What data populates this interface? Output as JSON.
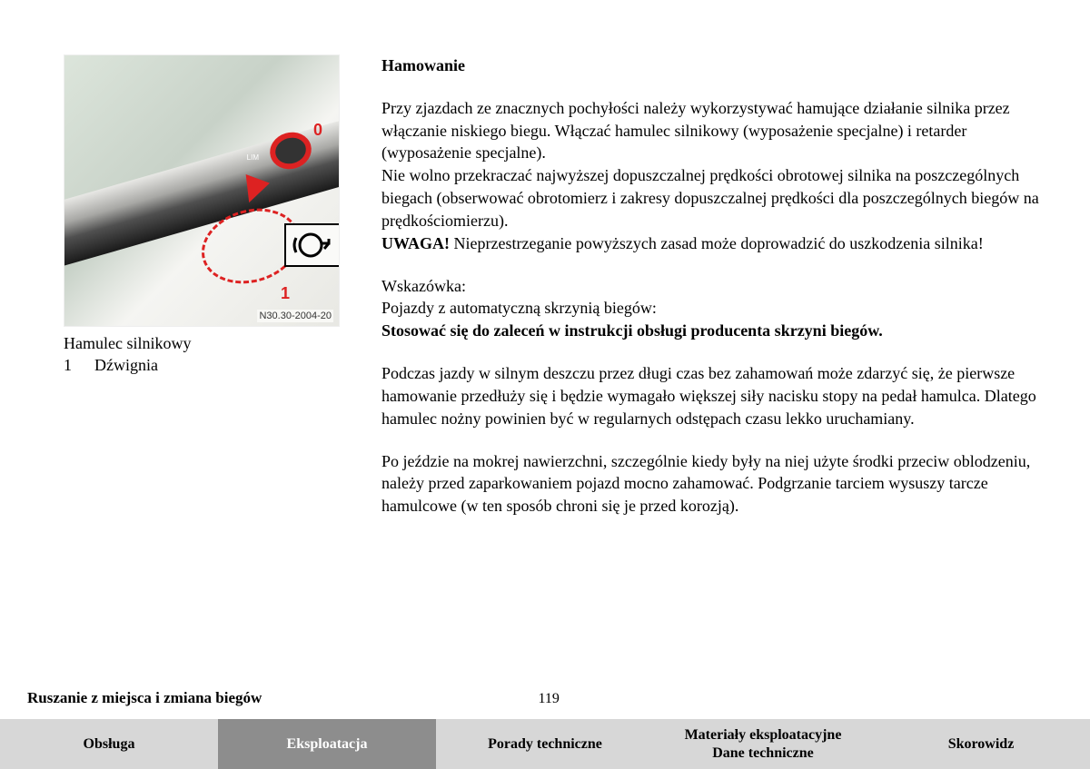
{
  "figure": {
    "code": "N30.30-2004-20",
    "labels": {
      "zero": "0",
      "one": "1",
      "limit": "LIM"
    },
    "caption_title": "Hamulec silnikowy",
    "caption_items": [
      {
        "num": "1",
        "text": "Dźwignia"
      }
    ]
  },
  "content": {
    "heading": "Hamowanie",
    "p1": "Przy zjazdach ze znacznych pochyłości należy wykorzystywać hamujące działanie silnika przez włączanie niskiego biegu. Włączać hamulec silnikowy (wyposażenie specjalne) i retarder (wyposażenie specjalne).",
    "p2": "Nie wolno przekraczać najwyższej dopuszczalnej prędkości obrotowej silnika na poszczególnych biegach (obserwować obrotomierz i zakresy dopuszczalnej prędkości dla poszczególnych biegów na prędkościomierzu).",
    "p3_bold": "UWAGA!",
    "p3_rest": " Nieprzestrzeganie powyższych zasad może doprowadzić do uszkodzenia silnika!",
    "hint_label": "Wskazówka:",
    "hint_line": "Pojazdy z automatyczną skrzynią biegów:",
    "hint_bold": "Stosować się do zaleceń w instrukcji obsługi producenta skrzyni biegów.",
    "p4": "Podczas jazdy w silnym deszczu przez długi czas bez zahamowań może zdarzyć się, że pierwsze hamowanie przedłuży się i będzie wymagało większej siły nacisku stopy na pedał hamulca. Dlatego hamulec nożny powinien być w regularnych odstępach czasu lekko uruchamiany.",
    "p5": "Po jeździe na mokrej nawierzchni, szczególnie kiedy były na niej użyte środki przeciw oblodzeniu, należy przed zaparkowaniem pojazd mocno zahamować. Podgrzanie tarciem wysuszy tarcze hamulcowe (w ten sposób chroni się je przed korozją)."
  },
  "footer": {
    "section_title": "Ruszanie z miejsca i zmiana biegów",
    "page_number": "119",
    "tabs": [
      {
        "label": "Obsługa",
        "bg": "#d7d7d7",
        "fg": "#000000"
      },
      {
        "label": "Eksploatacja",
        "bg": "#8d8d8d",
        "fg": "#ffffff"
      },
      {
        "label": "Porady techniczne",
        "bg": "#d7d7d7",
        "fg": "#000000"
      },
      {
        "label": "Materiały eksploatacyjne\nDane techniczne",
        "bg": "#d7d7d7",
        "fg": "#000000"
      },
      {
        "label": "Skorowidz",
        "bg": "#d7d7d7",
        "fg": "#000000"
      }
    ]
  }
}
